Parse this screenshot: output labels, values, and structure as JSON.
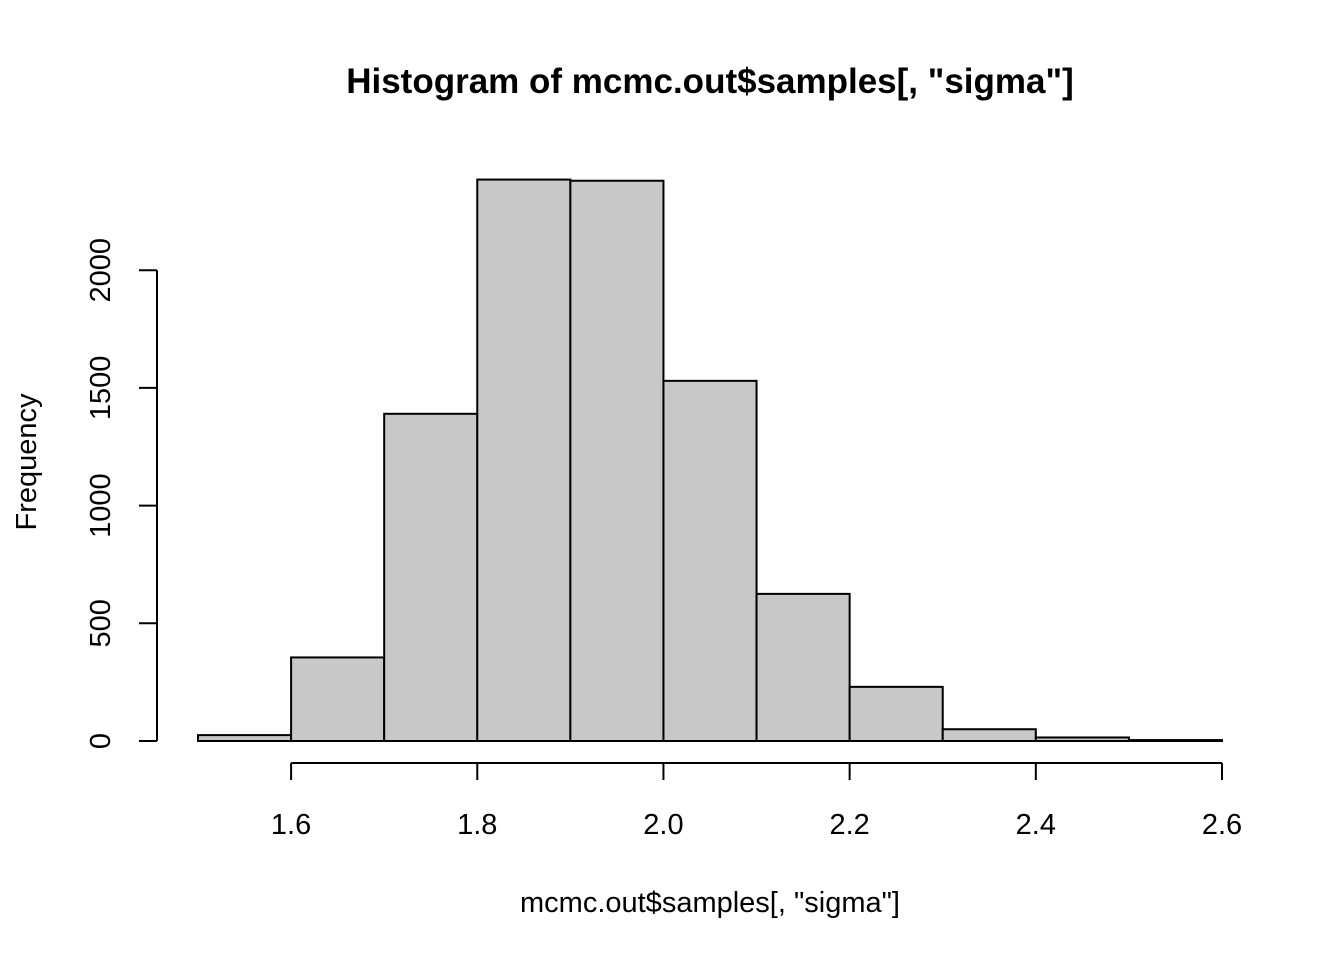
{
  "chart_data": {
    "type": "bar",
    "subtype": "histogram",
    "title": "Histogram of mcmc.out$samples[, \"sigma\"]",
    "xlabel": "mcmc.out$samples[, \"sigma\"]",
    "ylabel": "Frequency",
    "bin_edges": [
      1.5,
      1.6,
      1.7,
      1.8,
      1.9,
      2.0,
      2.1,
      2.2,
      2.3,
      2.4,
      2.5,
      2.6
    ],
    "values": [
      25,
      355,
      1390,
      2385,
      2380,
      1530,
      625,
      230,
      50,
      15,
      4
    ],
    "xlim": [
      1.5,
      2.6
    ],
    "ylim": [
      0,
      2385
    ],
    "x_ticks": [
      1.6,
      1.8,
      2.0,
      2.2,
      2.4,
      2.6
    ],
    "x_tick_labels": [
      "1.6",
      "1.8",
      "2.0",
      "2.2",
      "2.4",
      "2.6"
    ],
    "y_ticks": [
      0,
      500,
      1000,
      1500,
      2000
    ],
    "y_tick_labels": [
      "0",
      "500",
      "1000",
      "1500",
      "2000"
    ],
    "bar_color": "#c8c8c8",
    "border_color": "#000000",
    "grid": false,
    "legend": "none"
  }
}
